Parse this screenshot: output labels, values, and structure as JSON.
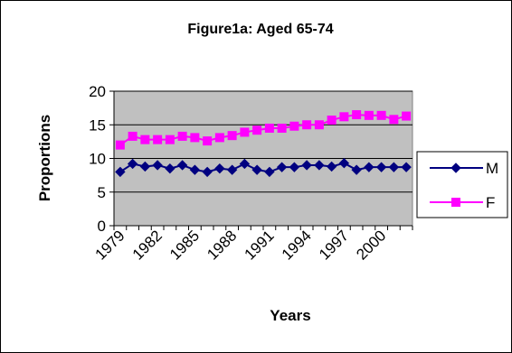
{
  "chart_data": {
    "type": "line",
    "title": "Figure1a: Aged 65-74",
    "xlabel": "Years",
    "ylabel": "Proportions",
    "ylim": [
      0,
      20
    ],
    "yticks": [
      0,
      5,
      10,
      15,
      20
    ],
    "x": [
      1979,
      1980,
      1981,
      1982,
      1983,
      1984,
      1985,
      1986,
      1987,
      1988,
      1989,
      1990,
      1991,
      1992,
      1993,
      1994,
      1995,
      1996,
      1997,
      1998,
      1999,
      2000,
      2001,
      2002
    ],
    "xtick_labels": [
      "1979",
      "1982",
      "1985",
      "1988",
      "1991",
      "1994",
      "1997",
      "2000"
    ],
    "grid": "horizontal",
    "legend_position": "right",
    "plot_background": "#c0c0c0",
    "series": [
      {
        "name": "M",
        "color": "#000080",
        "marker": "diamond",
        "values": [
          8.0,
          9.2,
          8.8,
          9.0,
          8.5,
          9.0,
          8.3,
          8.0,
          8.5,
          8.3,
          9.2,
          8.3,
          8.0,
          8.7,
          8.7,
          9.0,
          9.0,
          8.8,
          9.3,
          8.3,
          8.7,
          8.7,
          8.7,
          8.7
        ]
      },
      {
        "name": "F",
        "color": "#ff00ff",
        "marker": "square",
        "values": [
          12.0,
          13.3,
          12.8,
          12.8,
          12.8,
          13.3,
          13.1,
          12.6,
          13.1,
          13.4,
          13.9,
          14.2,
          14.5,
          14.5,
          14.8,
          15.0,
          15.0,
          15.7,
          16.2,
          16.5,
          16.4,
          16.4,
          15.8,
          16.3
        ]
      }
    ]
  }
}
